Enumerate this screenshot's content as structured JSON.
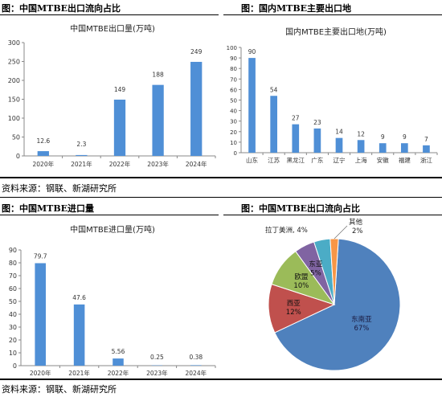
{
  "panels": {
    "tl": {
      "header": "图：中国MTBE出口流向占比"
    },
    "tr": {
      "header": "图：国内MTBE主要出口地"
    },
    "bl": {
      "header": "图：中国MTBE进口量"
    },
    "br": {
      "header": "图：中国MTBE出口流向占比"
    }
  },
  "source_top": "资料来源：钢联、新湖研究所",
  "source_bottom": "资料来源：钢联、新湖研究所",
  "bar_color": "#4f8fd6",
  "chart_data": [
    {
      "id": "export",
      "type": "bar",
      "title": "中国MTBE出口量(万吨)",
      "categories": [
        "2020年",
        "2021年",
        "2022年",
        "2023年",
        "2024年"
      ],
      "values": [
        12.6,
        2.3,
        149,
        188,
        249
      ],
      "value_labels": [
        "12.6",
        "2.3",
        "149",
        "188",
        "249"
      ],
      "ylim": [
        0,
        300
      ],
      "yticks": [
        "0",
        "50",
        "100",
        "150",
        "200",
        "250",
        "300"
      ],
      "grid": false
    },
    {
      "id": "dest",
      "type": "bar",
      "title": "国内MTBE主要出口地(万吨)",
      "categories": [
        "山东",
        "江苏",
        "黑龙江",
        "广东",
        "辽宁",
        "上海",
        "安徽",
        "福建",
        "浙江"
      ],
      "values": [
        90,
        54,
        27,
        23,
        14,
        12,
        9,
        9,
        7
      ],
      "value_labels": [
        "90",
        "54",
        "27",
        "23",
        "14",
        "12",
        "9",
        "9",
        "7"
      ],
      "ylim": [
        0,
        100
      ],
      "yticks": [
        "0",
        "10",
        "20",
        "30",
        "40",
        "50",
        "60",
        "70",
        "80",
        "90",
        "100"
      ],
      "grid": false
    },
    {
      "id": "import",
      "type": "bar",
      "title": "中国MTBE进口量(万吨)",
      "categories": [
        "2020年",
        "2021年",
        "2022年",
        "2023年",
        "2024年"
      ],
      "values": [
        79.7,
        47.6,
        5.56,
        0.25,
        0.38
      ],
      "value_labels": [
        "79.7",
        "47.6",
        "5.56",
        "0.25",
        "0.38"
      ],
      "ylim": [
        0,
        90
      ],
      "yticks": [
        "0",
        "10",
        "20",
        "30",
        "40",
        "50",
        "60",
        "70",
        "80",
        "90"
      ],
      "grid": false
    },
    {
      "id": "flow",
      "type": "pie",
      "slices": [
        {
          "label": "东南亚",
          "value": 67,
          "pct": "67%",
          "color": "#4f81bd"
        },
        {
          "label": "西亚",
          "value": 12,
          "pct": "12%",
          "color": "#c0504d"
        },
        {
          "label": "欧盟",
          "value": 10,
          "pct": "10%",
          "color": "#9bbb59"
        },
        {
          "label": "东亚",
          "value": 5,
          "pct": "5%",
          "color": "#8064a2"
        },
        {
          "label": "拉丁美洲",
          "value": 4,
          "pct": "4%",
          "color": "#4bacc6"
        },
        {
          "label": "其他",
          "value": 2,
          "pct": "2%",
          "color": "#f79646"
        }
      ],
      "outside_label_latam": "拉丁美洲, 4%",
      "outside_label_other_name": "其他",
      "outside_label_other_pct": "2%"
    }
  ]
}
